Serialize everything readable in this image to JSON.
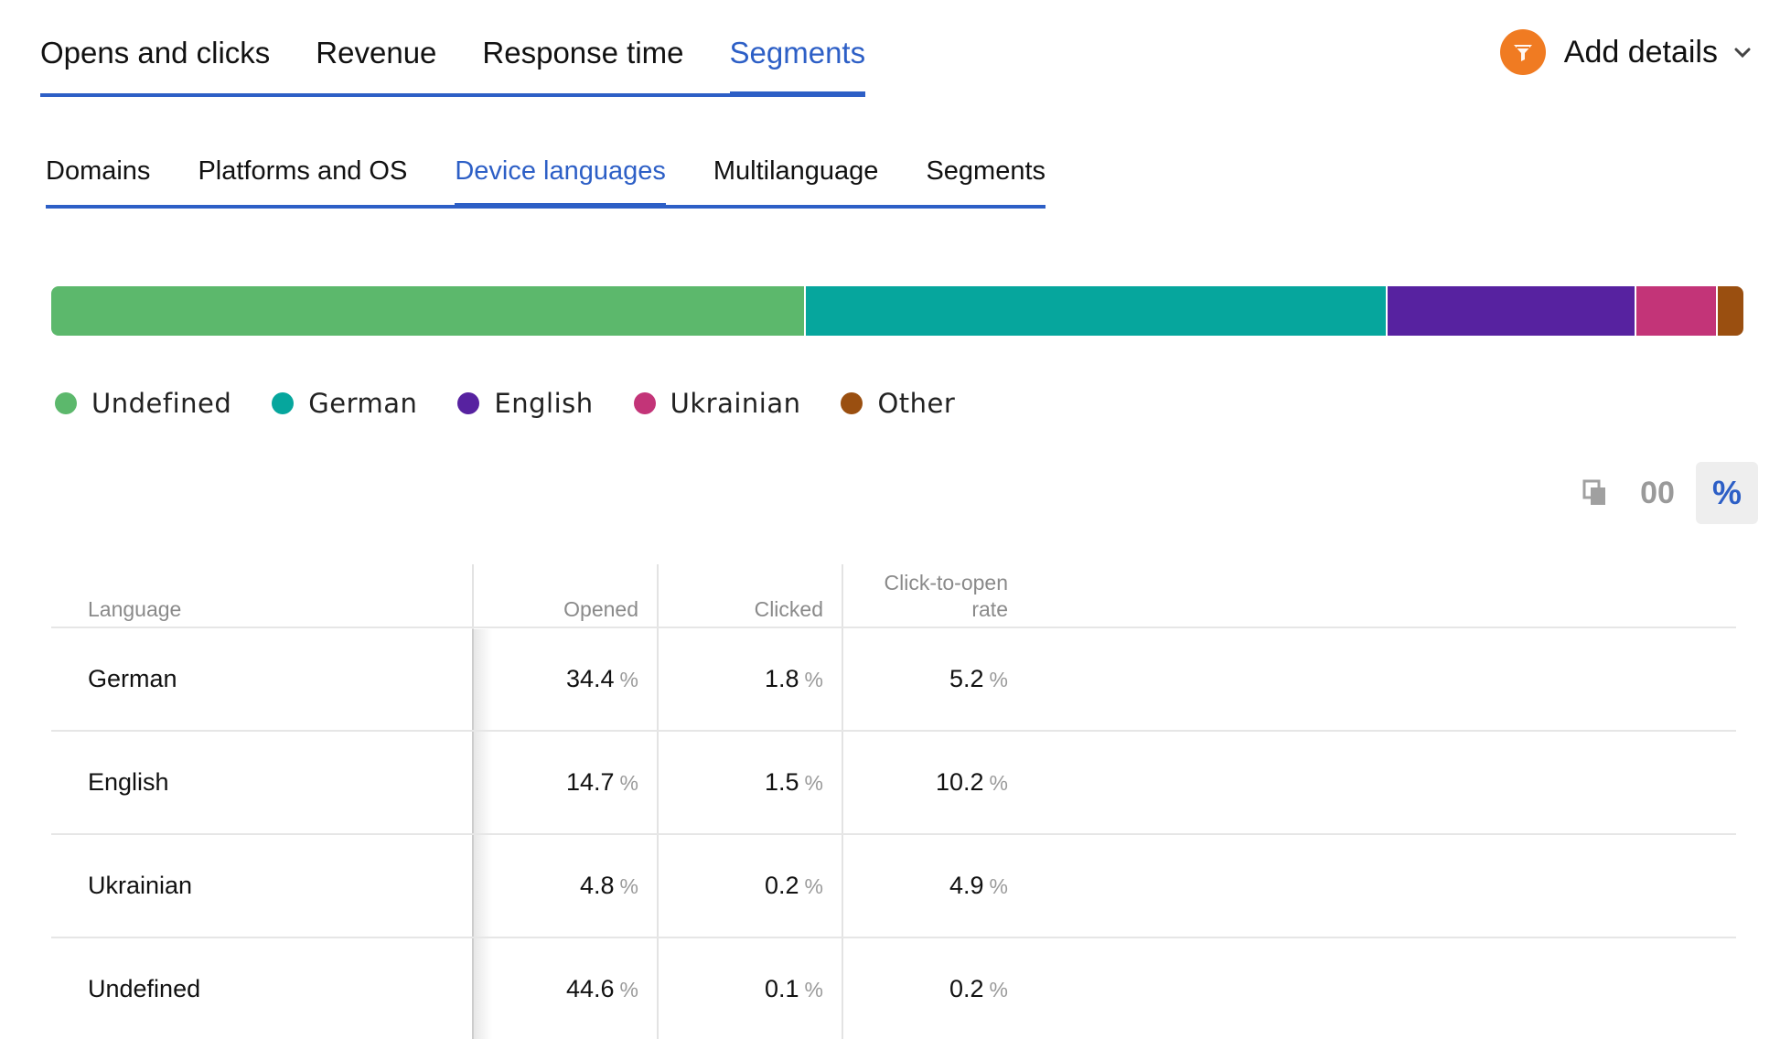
{
  "top_tabs": [
    {
      "label": "Opens and clicks",
      "active": false
    },
    {
      "label": "Revenue",
      "active": false
    },
    {
      "label": "Response time",
      "active": false
    },
    {
      "label": "Segments",
      "active": true
    }
  ],
  "add_details": {
    "label": "Add details"
  },
  "sub_tabs": [
    {
      "label": "Domains",
      "active": false
    },
    {
      "label": "Platforms and OS",
      "active": false
    },
    {
      "label": "Device languages",
      "active": true
    },
    {
      "label": "Multilanguage",
      "active": false
    },
    {
      "label": "Segments",
      "active": false
    }
  ],
  "legend": [
    {
      "label": "Undefined",
      "color": "#5cb86c"
    },
    {
      "label": "German",
      "color": "#06a69d"
    },
    {
      "label": "English",
      "color": "#5722a0"
    },
    {
      "label": "Ukrainian",
      "color": "#c33478"
    },
    {
      "label": "Other",
      "color": "#9a4f10"
    }
  ],
  "bar_shares": [
    44.6,
    34.4,
    14.7,
    4.8,
    1.5
  ],
  "view_toggles": {
    "copy_icon": "copy-icon",
    "absolute_label": "00",
    "percent_label": "%",
    "selected": "percent"
  },
  "table": {
    "headers": {
      "language": "Language",
      "opened": "Opened",
      "clicked": "Clicked",
      "cto_line1": "Click-to-open",
      "cto_line2": "rate"
    },
    "unit": "%",
    "rows": [
      {
        "language": "German",
        "opened": "34.4",
        "clicked": "1.8",
        "cto": "5.2"
      },
      {
        "language": "English",
        "opened": "14.7",
        "clicked": "1.5",
        "cto": "10.2"
      },
      {
        "language": "Ukrainian",
        "opened": "4.8",
        "clicked": "0.2",
        "cto": "4.9"
      },
      {
        "language": "Undefined",
        "opened": "44.6",
        "clicked": "0.1",
        "cto": "0.2"
      }
    ]
  }
}
